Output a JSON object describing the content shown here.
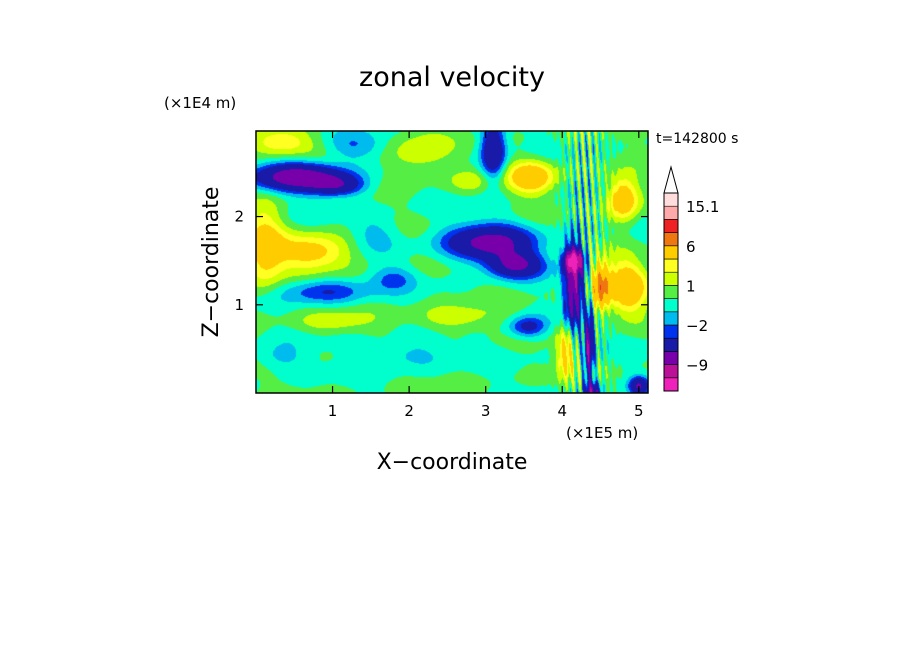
{
  "chart_data": {
    "type": "heatmap",
    "title": "zonal velocity",
    "xlabel": "X−coordinate",
    "ylabel": "Z−coordinate",
    "x_unit": "(×1E5 m)",
    "y_unit": "(×1E4 m)",
    "time_label": "t=142800 s",
    "xlim": [
      0,
      5.12
    ],
    "ylim": [
      0,
      2.97
    ],
    "x_ticks": [
      1,
      2,
      3,
      4,
      5
    ],
    "y_ticks": [
      1,
      2
    ],
    "colorbar": {
      "levels": [
        -15,
        -12,
        -9,
        -6,
        -3,
        -2,
        -1,
        0,
        1,
        2,
        3,
        6,
        9,
        12,
        15.1
      ],
      "colors": [
        "#ee22bb",
        "#bb1199",
        "#7700aa",
        "#1a1aa8",
        "#0033ee",
        "#00bbee",
        "#00ffcc",
        "#55ee44",
        "#ccff00",
        "#ffff22",
        "#ffcc00",
        "#ee7711",
        "#ee2222",
        "#ffaaaa",
        "#ffdddd"
      ],
      "tick_labels": [
        {
          "value": 15.1,
          "text": "15.1"
        },
        {
          "value": 6,
          "text": "6"
        },
        {
          "value": 1,
          "text": "1"
        },
        {
          "value": -2,
          "text": "−2"
        },
        {
          "value": -9,
          "text": "−9"
        }
      ]
    },
    "features": [
      {
        "x": 0.55,
        "z": 2.45,
        "sx": 0.55,
        "sz": 0.15,
        "value": -8
      },
      {
        "x": 1.05,
        "z": 2.35,
        "sx": 0.35,
        "sz": 0.12,
        "value": -5
      },
      {
        "x": 3.05,
        "z": 1.7,
        "sx": 0.55,
        "sz": 0.2,
        "value": -7
      },
      {
        "x": 3.4,
        "z": 1.45,
        "sx": 0.35,
        "sz": 0.14,
        "value": -6
      },
      {
        "x": 3.1,
        "z": 2.75,
        "sx": 0.15,
        "sz": 0.3,
        "value": -6
      },
      {
        "x": 4.15,
        "z": 1.2,
        "sx": 0.12,
        "sz": 0.5,
        "value": -8
      },
      {
        "x": 4.35,
        "z": 0.5,
        "sx": 0.06,
        "sz": 0.4,
        "value": -8
      },
      {
        "x": 0.9,
        "z": 1.15,
        "sx": 0.55,
        "sz": 0.14,
        "value": -3
      },
      {
        "x": 1.8,
        "z": 1.3,
        "sx": 0.3,
        "sz": 0.14,
        "value": -2
      },
      {
        "x": 3.55,
        "z": 0.75,
        "sx": 0.25,
        "sz": 0.12,
        "value": -4
      },
      {
        "x": 1.3,
        "z": 2.8,
        "sx": 0.4,
        "sz": 0.15,
        "value": -2
      },
      {
        "x": 4.15,
        "z": 1.5,
        "sx": 0.12,
        "sz": 0.12,
        "value": -11
      },
      {
        "x": 0.75,
        "z": 1.6,
        "sx": 0.5,
        "sz": 0.2,
        "value": 4
      },
      {
        "x": 0.1,
        "z": 1.65,
        "sx": 0.25,
        "sz": 0.45,
        "value": 4
      },
      {
        "x": 2.6,
        "z": 0.85,
        "sx": 0.55,
        "sz": 0.14,
        "value": 2
      },
      {
        "x": 1.0,
        "z": 0.8,
        "sx": 0.5,
        "sz": 0.13,
        "value": 1.5
      },
      {
        "x": 3.6,
        "z": 2.45,
        "sx": 0.3,
        "sz": 0.18,
        "value": 5
      },
      {
        "x": 2.1,
        "z": 2.7,
        "sx": 0.4,
        "sz": 0.25,
        "value": 2
      },
      {
        "x": 0.3,
        "z": 2.85,
        "sx": 0.4,
        "sz": 0.15,
        "value": 3
      },
      {
        "x": 2.8,
        "z": 2.4,
        "sx": 0.25,
        "sz": 0.12,
        "value": 1.5
      },
      {
        "x": 4.5,
        "z": 1.2,
        "sx": 0.12,
        "sz": 0.25,
        "value": 7
      },
      {
        "x": 4.85,
        "z": 1.2,
        "sx": 0.25,
        "sz": 0.3,
        "value": 5
      },
      {
        "x": 4.8,
        "z": 2.2,
        "sx": 0.2,
        "sz": 0.25,
        "value": 5
      },
      {
        "x": 4.05,
        "z": 0.45,
        "sx": 0.12,
        "sz": 0.3,
        "value": 4
      },
      {
        "x": 1.95,
        "z": 0.45,
        "sx": 0.6,
        "sz": 0.18,
        "value": -1.5
      },
      {
        "x": 0.3,
        "z": 0.4,
        "sx": 0.35,
        "sz": 0.15,
        "value": -1.5
      },
      {
        "x": 1.55,
        "z": 1.8,
        "sx": 0.35,
        "sz": 0.2,
        "value": -1.5
      },
      {
        "x": 4.4,
        "z": 0.0,
        "sx": 0.1,
        "sz": 0.12,
        "value": -7
      },
      {
        "x": 5.0,
        "z": 0.08,
        "sx": 0.12,
        "sz": 0.1,
        "value": -6
      }
    ]
  }
}
